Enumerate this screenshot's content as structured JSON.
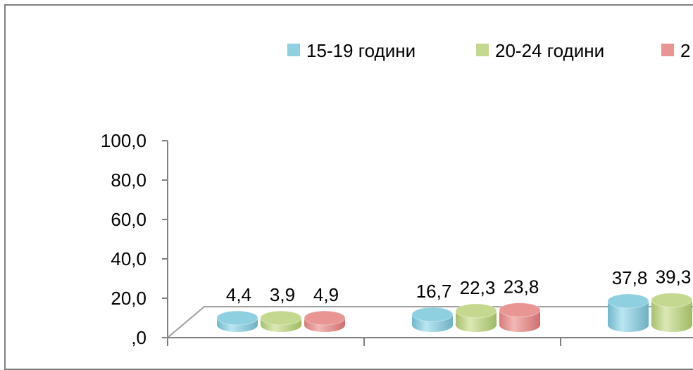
{
  "chart_data": {
    "type": "bar",
    "title": "",
    "xlabel": "",
    "ylabel": "",
    "ylim": [
      0,
      100
    ],
    "y_ticks": [
      "100,0",
      "80,0",
      "60,0",
      "40,0",
      "20,0",
      ",0"
    ],
    "y_tick_values": [
      100,
      80,
      60,
      40,
      20,
      0
    ],
    "categories": [
      "",
      "",
      ""
    ],
    "legend_position": "top",
    "series": [
      {
        "name": "15-19 години",
        "color": "#8ecfe0",
        "values": [
          4.4,
          16.7,
          37.8
        ],
        "labels": [
          "4,4",
          "16,7",
          "37,8"
        ]
      },
      {
        "name": "20-24 години",
        "color": "#c4d98f",
        "values": [
          3.9,
          22.3,
          39.3
        ],
        "labels": [
          "3,9",
          "22,3",
          "39,3"
        ]
      },
      {
        "name": "2",
        "color": "#e89593",
        "values": [
          4.9,
          23.8,
          null
        ],
        "labels": [
          "4,9",
          "23,8",
          ""
        ]
      }
    ]
  }
}
